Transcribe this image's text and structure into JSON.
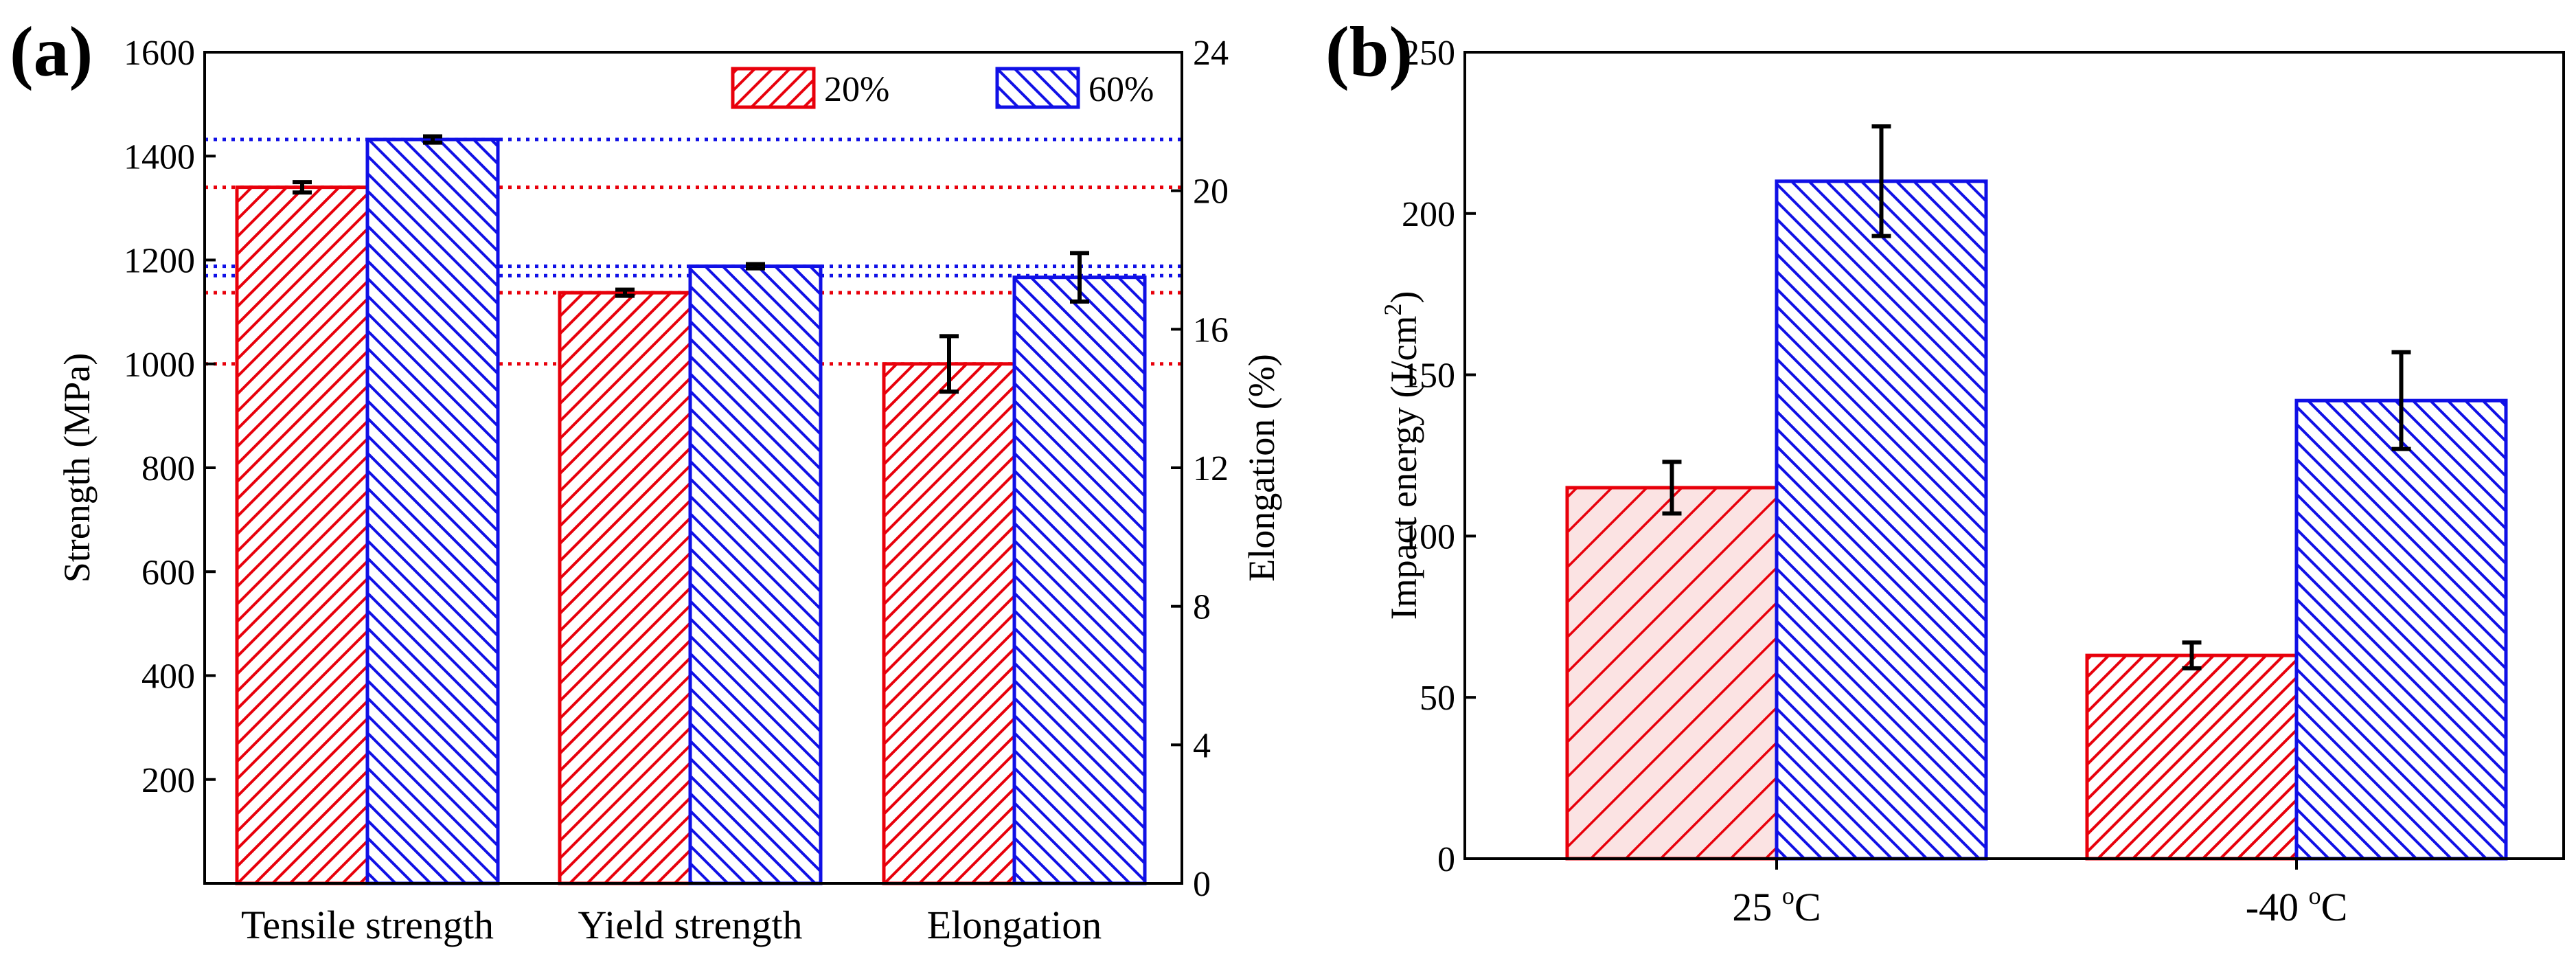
{
  "panels": {
    "a_label": "(a)",
    "b_label": "(b)"
  },
  "colors": {
    "red": "#e8000b",
    "blue": "#1010e6"
  },
  "chart_data": [
    {
      "type": "bar",
      "panel": "(a)",
      "categories": [
        "Tensile strength",
        "Yield strength",
        "Elongation"
      ],
      "series": [
        {
          "name": "20%",
          "values": [
            1340,
            1137,
            15.0
          ],
          "errors": [
            10,
            6,
            0.8
          ],
          "color": "#e8000b"
        },
        {
          "name": "60%",
          "values": [
            1432,
            1188,
            17.5
          ],
          "errors": [
            6,
            4,
            0.7
          ],
          "color": "#1010e6"
        }
      ],
      "axis_assignment": [
        "left",
        "left",
        "right"
      ],
      "ylabel": "Strength (MPa)",
      "ylim": [
        0,
        1600
      ],
      "yticks": [
        200,
        400,
        600,
        800,
        1000,
        1200,
        1400,
        1600
      ],
      "y2label": "Elongation (%)",
      "y2lim": [
        0,
        24
      ],
      "y2ticks": [
        0,
        4,
        8,
        12,
        16,
        20,
        24
      ],
      "reference_lines": [
        {
          "series": "60%",
          "value": 1432
        },
        {
          "series": "20%",
          "value": 1340
        },
        {
          "series": "60%",
          "value": 1188
        },
        {
          "series": "20%",
          "value": 1137
        },
        {
          "series": "60%",
          "value": 1170
        },
        {
          "series": "20%",
          "value": 1000
        }
      ],
      "legend": {
        "entries": [
          "20%",
          "60%"
        ],
        "position": "top-right"
      }
    },
    {
      "type": "bar",
      "panel": "(b)",
      "categories": [
        "25 °C",
        "-40 °C"
      ],
      "category_labels": [
        {
          "value": "25",
          "sup": "o",
          "unit": "C"
        },
        {
          "value": "-40",
          "sup": "o",
          "unit": "C"
        }
      ],
      "series": [
        {
          "name": "20%",
          "values": [
            115,
            63
          ],
          "errors": [
            8,
            4
          ],
          "color": "#e8000b"
        },
        {
          "name": "60%",
          "values": [
            210,
            142
          ],
          "errors": [
            17,
            15
          ],
          "color": "#1010e6"
        }
      ],
      "ylabel": "Impact energy (J/cm2)",
      "ylabel_parts": {
        "main": "Impact energy  (J/cm",
        "sup": "2",
        "end": ")"
      },
      "ylim": [
        0,
        250
      ],
      "yticks": [
        0,
        50,
        100,
        150,
        200,
        250
      ]
    }
  ]
}
